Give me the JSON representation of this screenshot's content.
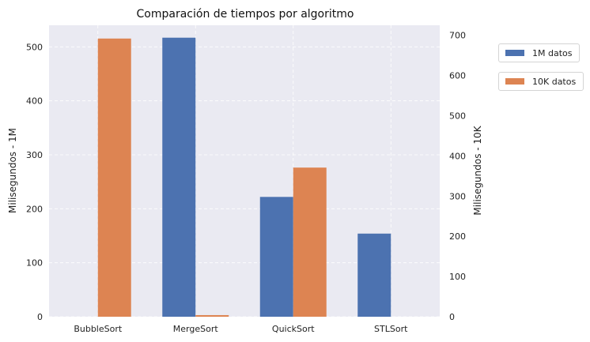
{
  "chart_data": {
    "type": "bar",
    "title": "Comparación de tiempos por algoritmo",
    "categories": [
      "BubbleSort",
      "MergeSort",
      "QuickSort",
      "STLSort"
    ],
    "series": [
      {
        "name": "1M datos",
        "axis": "left",
        "color": "#4c72b0",
        "values": [
          0,
          517,
          222,
          154
        ]
      },
      {
        "name": "10K datos",
        "axis": "right",
        "color": "#dd8452",
        "values": [
          692,
          4,
          371,
          0
        ]
      }
    ],
    "ylabel": "Milisegundos - 1M",
    "ylim": [
      0,
      540
    ],
    "yticks": [
      "0",
      "100",
      "200",
      "300",
      "400",
      "500"
    ],
    "y2label": "Milisegundos - 10K",
    "y2lim": [
      0,
      725
    ],
    "y2ticks": [
      "0",
      "100",
      "200",
      "300",
      "400",
      "500",
      "600",
      "700"
    ],
    "grid": true,
    "grid_style": "dashed",
    "background": "#eaeaf2",
    "legend_position": "outside-right"
  }
}
